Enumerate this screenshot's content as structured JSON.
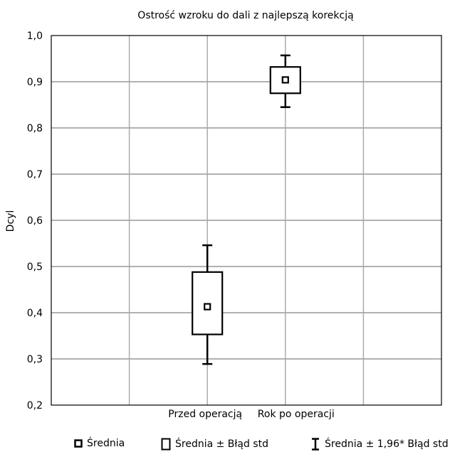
{
  "chart_data": {
    "type": "box",
    "title": "Ostrość wzroku do dali z najlepszą korekcją",
    "xlabel": "",
    "ylabel": "Dcyl",
    "ylim": [
      0.2,
      1.0
    ],
    "yticks": [
      "0,2",
      "0,3",
      "0,4",
      "0,5",
      "0,6",
      "0,7",
      "0,8",
      "0,9",
      "1,0"
    ],
    "grid": true,
    "categories": [
      "Przed operacją",
      "Rok po operacji"
    ],
    "series": [
      {
        "category": "Przed operacją",
        "mean": 0.413,
        "se_low": 0.353,
        "se_high": 0.488,
        "ci_low": 0.289,
        "ci_high": 0.546
      },
      {
        "category": "Rok po operacji",
        "mean": 0.904,
        "se_low": 0.875,
        "se_high": 0.932,
        "ci_low": 0.845,
        "ci_high": 0.957
      }
    ],
    "legend": [
      {
        "key": "mean",
        "label": "Średnia"
      },
      {
        "key": "se",
        "label": "Średnia ± Błąd std"
      },
      {
        "key": "ci",
        "label": "Średnia ± 1,96* Błąd std"
      }
    ],
    "legend_position": "bottom"
  }
}
